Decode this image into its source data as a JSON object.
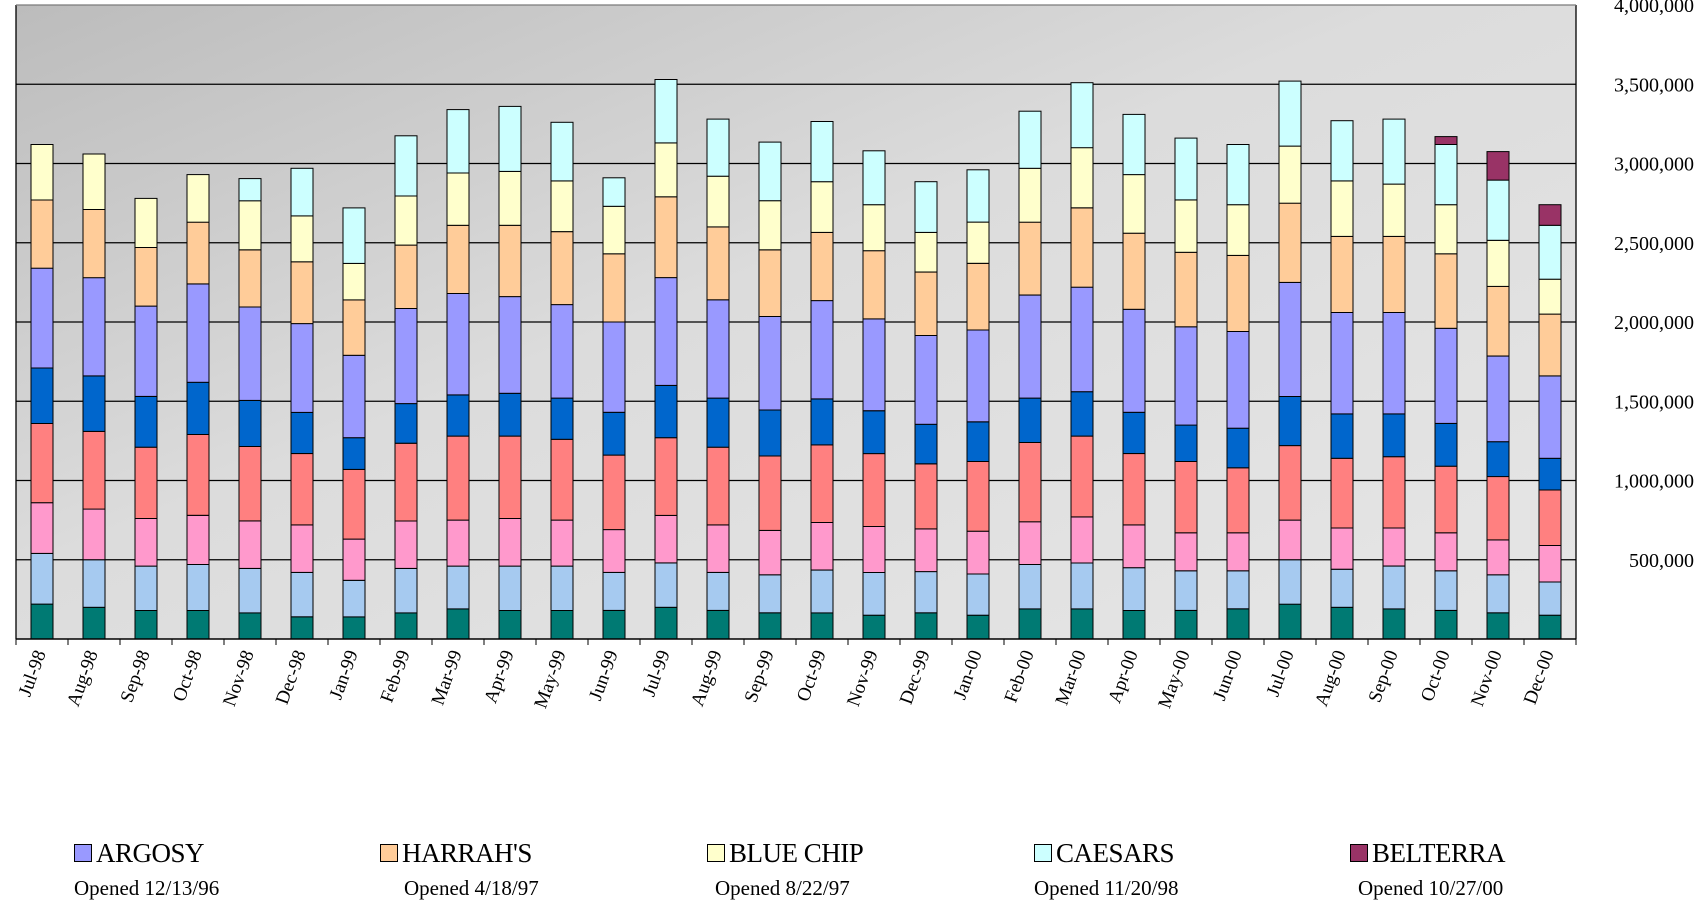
{
  "chart_data": {
    "type": "bar",
    "stacked": true,
    "categories": [
      "Jul-98",
      "Aug-98",
      "Sep-98",
      "Oct-98",
      "Nov-98",
      "Dec-98",
      "Jan-99",
      "Feb-99",
      "Mar-99",
      "Apr-99",
      "May-99",
      "Jun-99",
      "Jul-99",
      "Aug-99",
      "Sep-99",
      "Oct-99",
      "Nov-99",
      "Dec-99",
      "Jan-00",
      "Feb-00",
      "Mar-00",
      "Apr-00",
      "May-00",
      "Jun-00",
      "Jul-00",
      "Aug-00",
      "Sep-00",
      "Oct-00",
      "Nov-00",
      "Dec-00"
    ],
    "ylim": [
      0,
      4000000
    ],
    "yticks": [
      500000,
      1000000,
      1500000,
      2000000,
      2500000,
      3000000,
      3500000,
      4000000
    ],
    "ytick_labels": [
      "500,000",
      "1,000,000",
      "1,500,000",
      "2,000,000",
      "2,500,000",
      "3,000,000",
      "3,500,000",
      "4,000,000"
    ],
    "y_axis_side": "right",
    "grid": true,
    "legend_position": "bottom",
    "series": [
      {
        "color": "#007a73",
        "values": [
          220000,
          200000,
          180000,
          180000,
          165000,
          140000,
          140000,
          165000,
          190000,
          180000,
          180000,
          180000,
          200000,
          180000,
          165000,
          165000,
          150000,
          165000,
          150000,
          190000,
          190000,
          180000,
          180000,
          190000,
          220000,
          200000,
          190000,
          180000,
          165000,
          150000
        ]
      },
      {
        "color": "#a6caf0",
        "values": [
          320000,
          300000,
          280000,
          290000,
          280000,
          280000,
          230000,
          280000,
          270000,
          280000,
          280000,
          240000,
          280000,
          240000,
          240000,
          270000,
          270000,
          260000,
          260000,
          280000,
          290000,
          270000,
          250000,
          240000,
          280000,
          240000,
          270000,
          250000,
          240000,
          210000
        ]
      },
      {
        "color": "#ff99cc",
        "values": [
          320000,
          320000,
          300000,
          310000,
          300000,
          300000,
          260000,
          300000,
          290000,
          300000,
          290000,
          270000,
          300000,
          300000,
          280000,
          300000,
          290000,
          270000,
          270000,
          270000,
          290000,
          270000,
          240000,
          240000,
          250000,
          260000,
          240000,
          240000,
          220000,
          230000
        ]
      },
      {
        "color": "#ff8080",
        "values": [
          500000,
          490000,
          450000,
          510000,
          470000,
          450000,
          440000,
          490000,
          530000,
          520000,
          510000,
          470000,
          490000,
          490000,
          470000,
          490000,
          460000,
          410000,
          440000,
          500000,
          510000,
          450000,
          450000,
          410000,
          470000,
          440000,
          450000,
          420000,
          400000,
          350000
        ]
      },
      {
        "color": "#0066cc",
        "values": [
          350000,
          350000,
          320000,
          330000,
          290000,
          260000,
          200000,
          250000,
          260000,
          270000,
          260000,
          270000,
          330000,
          310000,
          290000,
          290000,
          270000,
          250000,
          250000,
          280000,
          280000,
          260000,
          230000,
          250000,
          310000,
          280000,
          270000,
          270000,
          220000,
          200000
        ]
      },
      {
        "color": "#9999ff",
        "values": [
          630000,
          620000,
          570000,
          620000,
          590000,
          560000,
          520000,
          600000,
          640000,
          610000,
          590000,
          570000,
          680000,
          620000,
          590000,
          620000,
          580000,
          560000,
          580000,
          650000,
          660000,
          650000,
          620000,
          610000,
          720000,
          640000,
          640000,
          600000,
          540000,
          520000
        ]
      },
      {
        "color": "#ffcc99",
        "values": [
          430000,
          430000,
          370000,
          390000,
          360000,
          390000,
          350000,
          400000,
          430000,
          450000,
          460000,
          430000,
          510000,
          460000,
          420000,
          430000,
          430000,
          400000,
          420000,
          460000,
          500000,
          480000,
          470000,
          480000,
          500000,
          480000,
          480000,
          470000,
          440000,
          390000
        ]
      },
      {
        "color": "#ffffcc",
        "values": [
          350000,
          350000,
          310000,
          300000,
          310000,
          290000,
          230000,
          310000,
          330000,
          340000,
          320000,
          300000,
          340000,
          320000,
          310000,
          320000,
          290000,
          250000,
          260000,
          340000,
          380000,
          370000,
          330000,
          320000,
          360000,
          350000,
          330000,
          310000,
          290000,
          220000
        ]
      },
      {
        "color": "#ccffff",
        "values": [
          0,
          0,
          0,
          0,
          140000,
          300000,
          350000,
          380000,
          400000,
          410000,
          370000,
          180000,
          400000,
          360000,
          370000,
          380000,
          340000,
          320000,
          330000,
          360000,
          410000,
          380000,
          390000,
          380000,
          410000,
          380000,
          410000,
          380000,
          380000,
          340000
        ]
      },
      {
        "color": "#993366",
        "values": [
          0,
          0,
          0,
          0,
          0,
          0,
          0,
          0,
          0,
          0,
          0,
          0,
          0,
          0,
          0,
          0,
          0,
          0,
          0,
          0,
          0,
          0,
          0,
          0,
          0,
          0,
          0,
          50000,
          180000,
          130000
        ]
      }
    ]
  },
  "legend": [
    {
      "name": "ARGOSY",
      "sub": "Opened  12/13/96",
      "color": "#9999ff"
    },
    {
      "name": "HARRAH'S",
      "sub": "Opened 4/18/97",
      "color": "#ffcc99"
    },
    {
      "name": "BLUE CHIP",
      "sub": "Opened 8/22/97",
      "color": "#ffffcc"
    },
    {
      "name": "CAESARS",
      "sub": "Opened 11/20/98",
      "color": "#ccffff"
    },
    {
      "name": "BELTERRA",
      "sub": "Opened 10/27/00",
      "color": "#993366"
    }
  ]
}
